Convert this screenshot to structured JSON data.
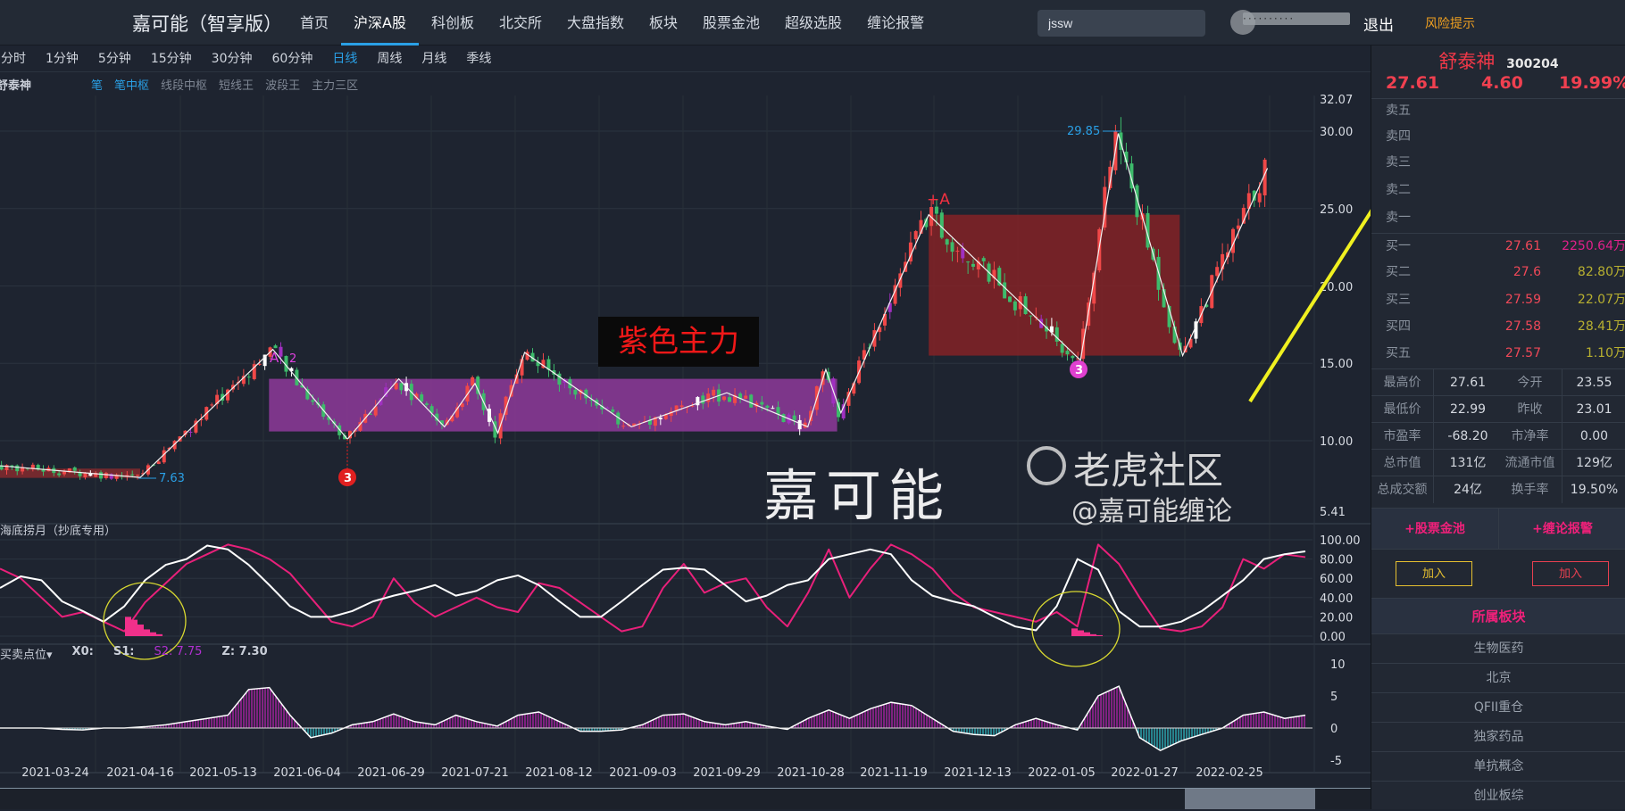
{
  "header": {
    "title": "嘉可能（智享版）",
    "nav": [
      "首页",
      "沪深A股",
      "科创板",
      "北交所",
      "大盘指数",
      "板块",
      "股票金池",
      "超级选股",
      "缠论报警"
    ],
    "active_nav": 1,
    "search_value": "jssw",
    "user_masked": "··········",
    "logout": "退出",
    "risk": "风险提示"
  },
  "timeframes": {
    "items": [
      "分时",
      "1分钟",
      "5分钟",
      "15分钟",
      "30分钟",
      "60分钟",
      "日线",
      "周线",
      "月线",
      "季线"
    ],
    "active": 6
  },
  "chart": {
    "stock_name": "舒泰神",
    "indicators": [
      "笔",
      "笔中枢",
      "线段中枢",
      "短线王",
      "波段王",
      "主力三区"
    ],
    "active_indicators": [
      0,
      1
    ]
  },
  "chart_data": [
    {
      "type": "candlestick",
      "y_ticks": [
        "32.07",
        "30.00",
        "25.00",
        "20.00",
        "15.00",
        "10.00",
        "5.41"
      ],
      "x_ticks": [
        "2021-03-24",
        "2021-04-16",
        "2021-05-13",
        "2021-06-04",
        "2021-06-29",
        "2021-07-21",
        "2021-08-12",
        "2021-09-03",
        "2021-09-29",
        "2021-10-28",
        "2021-11-19",
        "2021-12-13",
        "2022-01-05",
        "2022-01-27",
        "2022-02-25"
      ],
      "stroke_vertices": [
        {
          "date": "2021-03-03",
          "price": 8.5
        },
        {
          "date": "2021-04-16",
          "price": 7.63
        },
        {
          "date": "2021-05-26",
          "price": 15.9
        },
        {
          "date": "2021-06-16",
          "price": 10.1
        },
        {
          "date": "2021-07-01",
          "price": 14.0
        },
        {
          "date": "2021-07-13",
          "price": 10.9
        },
        {
          "date": "2021-07-21",
          "price": 13.7
        },
        {
          "date": "2021-07-27",
          "price": 10.5
        },
        {
          "date": "2021-08-03",
          "price": 15.7
        },
        {
          "date": "2021-08-31",
          "price": 10.9
        },
        {
          "date": "2021-09-29",
          "price": 13.1
        },
        {
          "date": "2021-10-27",
          "price": 10.9
        },
        {
          "date": "2021-11-01",
          "price": 14.6
        },
        {
          "date": "2021-11-05",
          "price": 11.8
        },
        {
          "date": "2021-11-29",
          "price": 24.6
        },
        {
          "date": "2022-01-10",
          "price": 15.2
        },
        {
          "date": "2022-01-20",
          "price": 29.85
        },
        {
          "date": "2022-02-09",
          "price": 15.5
        },
        {
          "date": "2022-03-10",
          "price": 27.61
        }
      ],
      "zones": [
        {
          "from": "2021-03-01",
          "to": "2021-04-16",
          "low": 7.6,
          "high": 8.2,
          "color": "#8a2a2e"
        },
        {
          "from": "2021-05-25",
          "to": "2021-11-04",
          "low": 10.6,
          "high": 14.0,
          "color": "#8e3a9a",
          "label": "紫色主力"
        },
        {
          "from": "2021-11-29",
          "to": "2022-02-08",
          "low": 15.5,
          "high": 24.6,
          "color": "#8a2226"
        }
      ],
      "annotations": {
        "high_label": "29.85",
        "low_label": "7.63",
        "plus_a": "+A",
        "a2": "A",
        "a2_num": "2",
        "badge": "3"
      }
    },
    {
      "type": "line",
      "title": "海底捞月（抄底专用）",
      "y_ticks": [
        "100.00",
        "80.00",
        "60.00",
        "40.00",
        "20.00",
        "0.00"
      ],
      "ylim": [
        0,
        100
      ],
      "series": [
        {
          "color": "#e8207a",
          "values": [
            70,
            60,
            40,
            20,
            25,
            15,
            5,
            35,
            55,
            75,
            85,
            95,
            90,
            80,
            65,
            40,
            15,
            10,
            20,
            60,
            35,
            20,
            30,
            40,
            30,
            25,
            55,
            50,
            35,
            20,
            5,
            10,
            50,
            75,
            45,
            55,
            60,
            30,
            10,
            45,
            90,
            40,
            70,
            95,
            85,
            70,
            45,
            30,
            25,
            20,
            15,
            25,
            10,
            95,
            75,
            40,
            8,
            5,
            10,
            30,
            80,
            70,
            85,
            82
          ]
        },
        {
          "color": "#ffffff",
          "values": [
            50,
            62,
            58,
            36,
            26,
            15,
            31,
            58,
            74,
            80,
            94,
            90,
            74,
            53,
            31,
            20,
            20,
            26,
            36,
            42,
            47,
            53,
            42,
            47,
            58,
            63,
            53,
            36,
            20,
            20,
            36,
            53,
            69,
            71,
            69,
            53,
            36,
            42,
            53,
            58,
            80,
            85,
            90,
            85,
            58,
            42,
            36,
            31,
            20,
            10,
            6,
            31,
            80,
            69,
            26,
            10,
            10,
            15,
            26,
            42,
            58,
            80,
            85,
            88
          ]
        }
      ]
    },
    {
      "type": "bar",
      "title": "买卖点位",
      "legend": {
        "x0": "X0:",
        "s1": "S1:",
        "s2": "S2: 7.75",
        "z": "Z: 7.30"
      },
      "y_ticks": [
        "10",
        "5",
        "0",
        "-5"
      ],
      "ylim": [
        -5,
        10
      ],
      "values": [
        0,
        0,
        0,
        -0.2,
        -0.3,
        0,
        0,
        0.2,
        0.5,
        1,
        1.5,
        2,
        6,
        6.3,
        2,
        -1.5,
        -0.8,
        0.5,
        1,
        2.2,
        1,
        0.5,
        2,
        1,
        0.3,
        2,
        2.5,
        1,
        -0.5,
        -0.5,
        -0.3,
        0.5,
        2,
        2.2,
        1,
        0.5,
        1,
        0.3,
        -0.2,
        1.5,
        2.8,
        1.5,
        3,
        4,
        3.5,
        1.5,
        -0.5,
        -1,
        -1.2,
        0.5,
        1.5,
        0.5,
        -0.3,
        5,
        6.5,
        -1.5,
        -3.5,
        -2,
        -1,
        0,
        2,
        2.5,
        1.5,
        2
      ],
      "colors": {
        "positive": "#e020d0",
        "negative": "#30e0e8"
      }
    }
  ],
  "quote": {
    "name": "舒泰神",
    "code": "300204",
    "price": "27.61",
    "change": "4.60",
    "pct": "19.99%",
    "sell": [
      "卖五",
      "卖四",
      "卖三",
      "卖二",
      "卖一"
    ],
    "buy": [
      {
        "label": "买一",
        "price": "27.61",
        "vol": "2250.64万"
      },
      {
        "label": "买二",
        "price": "27.6",
        "vol": "82.80万"
      },
      {
        "label": "买三",
        "price": "27.59",
        "vol": "22.07万"
      },
      {
        "label": "买四",
        "price": "27.58",
        "vol": "28.41万"
      },
      {
        "label": "买五",
        "price": "27.57",
        "vol": "1.10万"
      }
    ],
    "stats": [
      [
        "最高价",
        "27.61",
        "今开",
        "23.55"
      ],
      [
        "最低价",
        "22.99",
        "昨收",
        "23.01"
      ],
      [
        "市盈率",
        "-68.20",
        "市净率",
        "0.00"
      ],
      [
        "总市值",
        "131亿",
        "流通市值",
        "129亿"
      ],
      [
        "总成交额",
        "24亿",
        "换手率",
        "19.50%"
      ]
    ],
    "pool_label": "+股票金池",
    "alert_label": "+缠论报警",
    "add_label": "加入",
    "sector_title": "所属板块",
    "sectors": [
      "生物医药",
      "北京",
      "QFII重仓",
      "独家药品",
      "单抗概念",
      "创业板综"
    ]
  },
  "overlay": {
    "chart_text": "嘉可能",
    "watermark": "老虎社区",
    "watermark_author": "@嘉可能缠论"
  }
}
